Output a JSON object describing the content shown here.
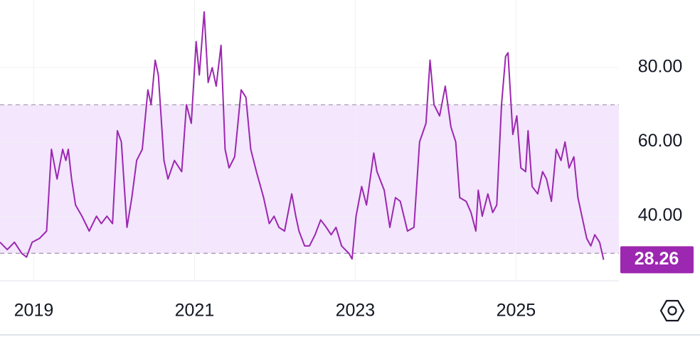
{
  "chart_data": {
    "type": "line",
    "x": [
      2018.58,
      2018.67,
      2018.76,
      2018.85,
      2018.91,
      2018.98,
      2019.07,
      2019.16,
      2019.22,
      2019.29,
      2019.36,
      2019.4,
      2019.43,
      2019.47,
      2019.52,
      2019.6,
      2019.69,
      2019.78,
      2019.84,
      2019.91,
      2019.98,
      2020.04,
      2020.09,
      2020.16,
      2020.22,
      2020.28,
      2020.35,
      2020.42,
      2020.46,
      2020.51,
      2020.55,
      2020.62,
      2020.67,
      2020.75,
      2020.84,
      2020.9,
      2020.96,
      2021.02,
      2021.06,
      2021.12,
      2021.17,
      2021.22,
      2021.27,
      2021.33,
      2021.38,
      2021.43,
      2021.5,
      2021.58,
      2021.64,
      2021.7,
      2021.77,
      2021.86,
      2021.93,
      2021.99,
      2022.05,
      2022.12,
      2022.21,
      2022.26,
      2022.3,
      2022.37,
      2022.43,
      2022.5,
      2022.57,
      2022.64,
      2022.7,
      2022.76,
      2022.83,
      2022.92,
      2022.96,
      2023.01,
      2023.08,
      2023.14,
      2023.23,
      2023.27,
      2023.36,
      2023.43,
      2023.5,
      2023.56,
      2023.65,
      2023.73,
      2023.8,
      2023.88,
      2023.93,
      2023.98,
      2024.05,
      2024.12,
      2024.19,
      2024.25,
      2024.3,
      2024.38,
      2024.44,
      2024.5,
      2024.53,
      2024.58,
      2024.65,
      2024.71,
      2024.76,
      2024.82,
      2024.87,
      2024.9,
      2024.96,
      2025.01,
      2025.06,
      2025.12,
      2025.15,
      2025.2,
      2025.27,
      2025.33,
      2025.38,
      2025.44,
      2025.5,
      2025.56,
      2025.61,
      2025.66,
      2025.72,
      2025.77,
      2025.82,
      2025.88,
      2025.93,
      2025.98,
      2026.04,
      2026.09
    ],
    "series": [
      {
        "color": "#9c27b0",
        "values": [
          33,
          31,
          33,
          30,
          29,
          33,
          34,
          36,
          58,
          50,
          58,
          55,
          58,
          50,
          43,
          40,
          36,
          40,
          38,
          40,
          38,
          63,
          60,
          37,
          45,
          55,
          58,
          74,
          70,
          82,
          78,
          55,
          50,
          55,
          52,
          70,
          65,
          87,
          78,
          95,
          76,
          80,
          75,
          86,
          58,
          53,
          56,
          74,
          72,
          58,
          52,
          45,
          38,
          40,
          37,
          36,
          46,
          40,
          36,
          32,
          32,
          35,
          39,
          37,
          35,
          37,
          32,
          30,
          28.5,
          40,
          48,
          43,
          57,
          52,
          47,
          37,
          45,
          44,
          36,
          37,
          60,
          65,
          82,
          70,
          67,
          75,
          64,
          60,
          45,
          44,
          41,
          36,
          47,
          40,
          46,
          41,
          43,
          70,
          83,
          84,
          62,
          67,
          53,
          52,
          63,
          48,
          46,
          52,
          50,
          44,
          58,
          55,
          60,
          53,
          56,
          45,
          40,
          34,
          32,
          35,
          33,
          28.26
        ]
      }
    ],
    "bands": [
      30,
      70
    ],
    "band_color": "#f3e6fd",
    "xlim": [
      2018.58,
      2026.28
    ],
    "xticks": [
      2019,
      2021,
      2023,
      2025
    ],
    "ylim": [
      22.6,
      98.2
    ],
    "yticks": [
      {
        "value": 40,
        "label": "40.00"
      },
      {
        "value": 60,
        "label": "60.00"
      },
      {
        "value": 80,
        "label": "80.00"
      }
    ],
    "last_value_label": "28.26",
    "grid": true
  }
}
